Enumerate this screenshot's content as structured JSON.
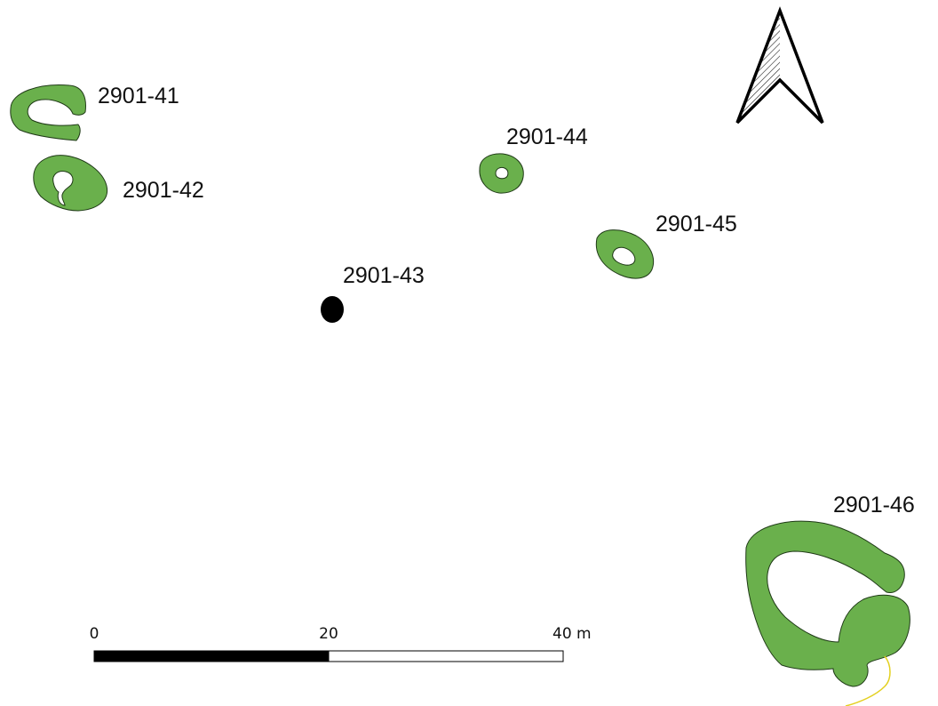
{
  "map": {
    "features": [
      {
        "id": "f41",
        "label": "2901-41",
        "kind": "polygon"
      },
      {
        "id": "f42",
        "label": "2901-42",
        "kind": "polygon"
      },
      {
        "id": "f43",
        "label": "2901-43",
        "kind": "point"
      },
      {
        "id": "f44",
        "label": "2901-44",
        "kind": "polygon"
      },
      {
        "id": "f45",
        "label": "2901-45",
        "kind": "polygon"
      },
      {
        "id": "f46",
        "label": "2901-46",
        "kind": "polygon"
      }
    ],
    "feature_fill_color": "#6ab04c",
    "point_color": "#000000",
    "north_arrow": {
      "icon": "north-arrow-icon"
    },
    "scale_bar": {
      "tick_labels": [
        "0",
        "20",
        "40 m"
      ],
      "segment_colors": [
        "#000000",
        "#ffffff"
      ]
    }
  }
}
